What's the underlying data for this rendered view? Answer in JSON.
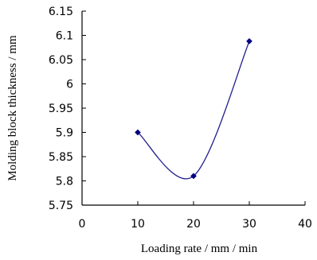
{
  "chart_data": {
    "type": "line",
    "title": "",
    "xlabel": "Loading rate /  mm / min",
    "ylabel": "Molding block thickness / mm",
    "xlim": [
      0,
      40
    ],
    "ylim": [
      5.75,
      6.15
    ],
    "xticks": [
      0,
      10,
      20,
      30,
      40
    ],
    "xtick_labels": [
      "0",
      "10",
      "20",
      "30",
      "40"
    ],
    "yticks": [
      5.75,
      5.8,
      5.85,
      5.9,
      5.95,
      6.0,
      6.05,
      6.1,
      6.15
    ],
    "ytick_labels": [
      "5.75",
      "5.8",
      "5.85",
      "5.9",
      "5.95",
      "6",
      "6.05",
      "6.1",
      "6.15"
    ],
    "grid": false,
    "smooth": true,
    "series": [
      {
        "x": [
          10,
          20,
          30
        ],
        "y": [
          5.9,
          5.81,
          6.088
        ],
        "color": "#1f1f8f",
        "marker_color": "#000080"
      }
    ]
  }
}
